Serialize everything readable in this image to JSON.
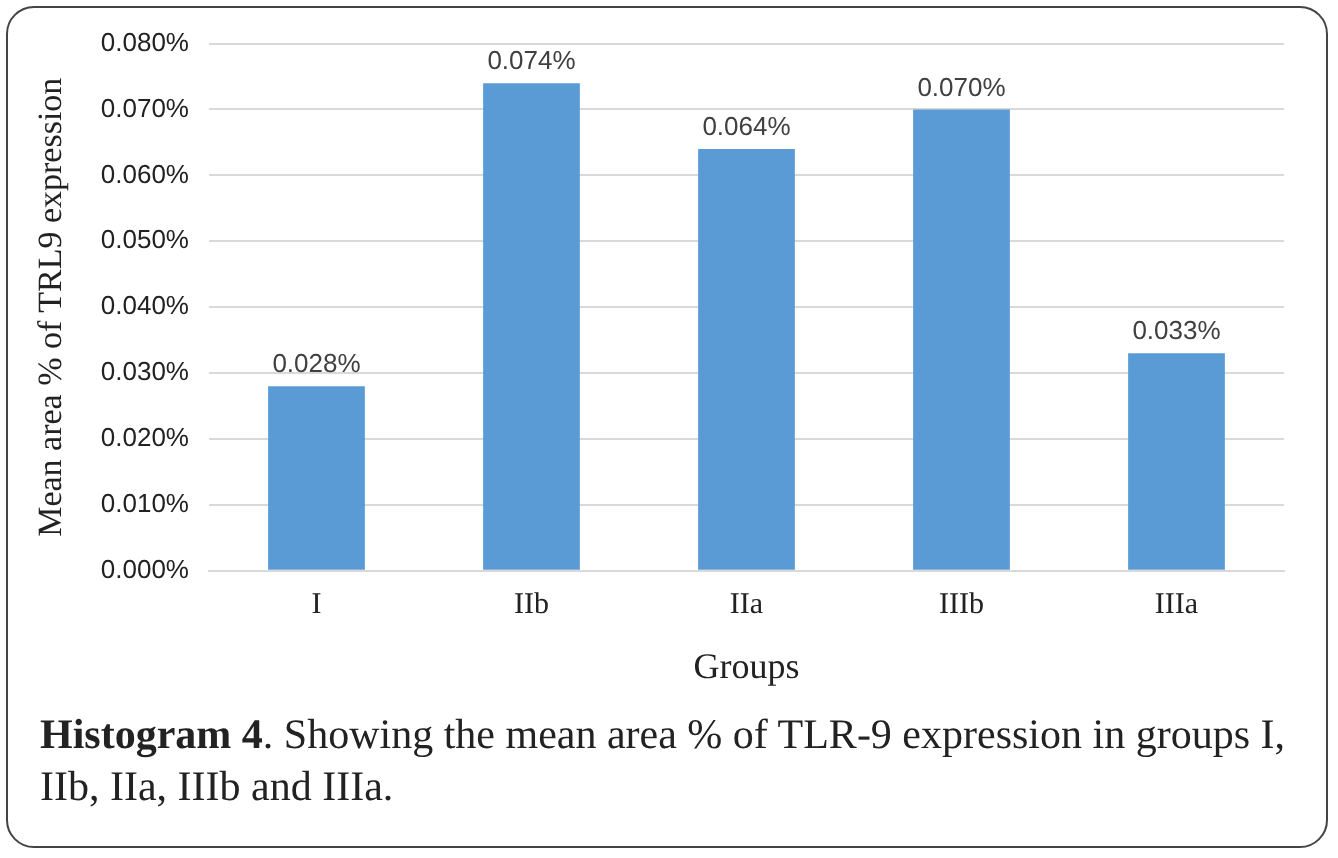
{
  "chart_data": {
    "type": "bar",
    "categories": [
      "I",
      "IIb",
      "IIa",
      "IIIb",
      "IIIa"
    ],
    "values": [
      0.028,
      0.074,
      0.064,
      0.07,
      0.033
    ],
    "value_labels": [
      "0.028%",
      "0.074%",
      "0.064%",
      "0.070%",
      "0.033%"
    ],
    "color": "#5b9bd5",
    "xlabel": "Groups",
    "ylabel": "Mean area % of TRL9 expression",
    "ylim": [
      0,
      0.08
    ],
    "yticks": [
      {
        "value": 0,
        "label": "0.000%"
      },
      {
        "value": 0.01,
        "label": "0.010%"
      },
      {
        "value": 0.02,
        "label": "0.020%"
      },
      {
        "value": 0.03,
        "label": "0.030%"
      },
      {
        "value": 0.04,
        "label": "0.040%"
      },
      {
        "value": 0.05,
        "label": "0.050%"
      },
      {
        "value": 0.06,
        "label": "0.060%"
      },
      {
        "value": 0.07,
        "label": "0.070%"
      },
      {
        "value": 0.08,
        "label": "0.080%"
      }
    ],
    "grid": "y",
    "annotations": [
      "Histogram 4. Showing the mean area % of TLR-9 expression in groups I, IIb, IIa, IIIb and IIIa."
    ]
  }
}
